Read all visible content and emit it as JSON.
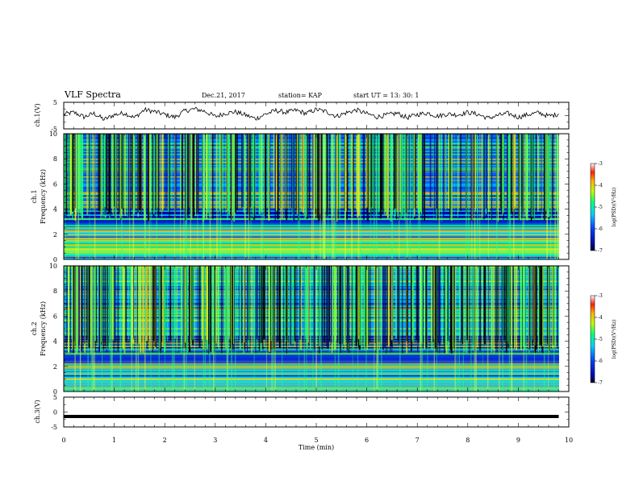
{
  "header": {
    "title": "VLF Spectra",
    "date": "Dec.21, 2017",
    "station": "station= KAP",
    "start": "start  UT =   13: 30: 1"
  },
  "chart_data": [
    {
      "type": "line",
      "panel": "ch1-waveform",
      "ylabel": "ch.1(V)",
      "ylim": [
        -5,
        5
      ],
      "yticks": [
        "5",
        "-5"
      ],
      "xlim": [
        0,
        10
      ],
      "description_of_values": "noisy waveform around 0 V, roughly between -3 and +3 V",
      "series": [
        {
          "x": [
            0,
            0.2,
            0.4,
            0.6,
            0.8,
            1.0,
            1.2,
            1.4,
            1.6,
            1.8,
            2.0,
            2.2,
            2.4,
            2.6,
            2.8,
            3.0,
            3.2,
            3.4,
            3.6,
            3.8,
            4.0,
            4.2,
            4.4,
            4.6,
            4.8,
            5.0,
            5.2,
            5.4,
            5.6,
            5.8,
            6.0,
            6.2,
            6.4,
            6.6,
            6.8,
            7.0,
            7.2,
            7.4,
            7.6,
            7.8,
            8.0,
            8.2,
            8.4,
            8.6,
            8.8,
            9.0,
            9.2,
            9.4,
            9.6,
            9.8
          ],
          "values": [
            0.5,
            1.2,
            -0.5,
            0.8,
            -1.5,
            0.3,
            1.0,
            -0.8,
            2.2,
            1.5,
            0.4,
            -0.6,
            1.8,
            2.5,
            1.6,
            -0.4,
            0.9,
            1.4,
            0.2,
            -1.2,
            0.6,
            1.9,
            1.2,
            2.0,
            0.8,
            2.3,
            1.5,
            -0.3,
            1.1,
            2.1,
            0.7,
            -0.5,
            0.2,
            0.9,
            -0.8,
            0.4,
            1.0,
            -0.2,
            0.6,
            0.3,
            1.2,
            0.5,
            -1.0,
            0.1,
            0.8,
            -0.6,
            0.4,
            1.1,
            -0.2,
            0.6
          ]
        }
      ]
    },
    {
      "type": "heatmap",
      "panel": "ch1-spectrogram",
      "ylabel": "ch.1\nFrequency (kHz)",
      "ylim": [
        0,
        10
      ],
      "yticks": [
        "0",
        "2",
        "4",
        "6",
        "8",
        "10"
      ],
      "xlim": [
        0,
        10
      ],
      "colorbar": {
        "label": "log(PSD)(V²/Hz)",
        "range": [
          -7,
          -3
        ],
        "ticks": [
          "-3",
          "-4",
          "-5",
          "-6",
          "-7"
        ]
      }
    },
    {
      "type": "heatmap",
      "panel": "ch2-spectrogram",
      "ylabel": "ch.2\nFrequency (kHz)",
      "ylim": [
        0,
        10
      ],
      "yticks": [
        "0",
        "2",
        "4",
        "6",
        "8",
        "10"
      ],
      "xlim": [
        0,
        10
      ],
      "colorbar": {
        "label": "log(PSD)(V²/Hz)",
        "range": [
          -7,
          -3
        ],
        "ticks": [
          "-3",
          "-4",
          "-5",
          "-6",
          "-7"
        ]
      }
    },
    {
      "type": "line",
      "panel": "ch3-waveform",
      "ylabel": "ch.3(V)",
      "ylim": [
        -5,
        5
      ],
      "yticks": [
        "5",
        "0",
        "-5"
      ],
      "xlim": [
        0,
        10
      ],
      "xlabel": "Time (min)",
      "xticks": [
        "0",
        "1",
        "2",
        "3",
        "4",
        "5",
        "6",
        "7",
        "8",
        "9",
        "10"
      ],
      "series": [
        {
          "x": [
            0,
            9.8
          ],
          "values": [
            -1.5,
            -1.5
          ]
        }
      ]
    }
  ]
}
